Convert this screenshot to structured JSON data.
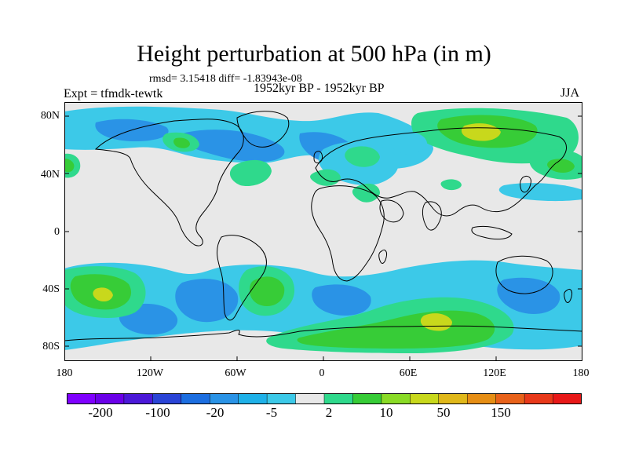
{
  "title": "Height perturbation at 500 hPa (in m)",
  "stats": "rmsd= 3.15418 diff= -1.83943e-08",
  "experiment": "Expt = tfmdk-tewtk",
  "period": "1952kyr BP - 1952kyr BP",
  "season": "JJA",
  "axes": {
    "lat_labels": [
      "80N",
      "40N",
      "0",
      "40S",
      "80S"
    ],
    "lon_labels": [
      "180",
      "120W",
      "60W",
      "0",
      "60E",
      "120E",
      "180"
    ]
  },
  "colorbar": {
    "labels": [
      "-200",
      "-100",
      "-20",
      "-5",
      "2",
      "10",
      "50",
      "150"
    ],
    "colors": [
      "#7f00ff",
      "#6a00e8",
      "#4b18d8",
      "#2a44d6",
      "#1c6ee0",
      "#2a93e6",
      "#1fb1e8",
      "#3cc9e8",
      "#e8e8e8",
      "#2fd98c",
      "#37cc37",
      "#8adb26",
      "#c8d81c",
      "#e0b81a",
      "#e68e14",
      "#e8621a",
      "#e8391a",
      "#e81818"
    ]
  },
  "colors": {
    "land_outline": "#000000",
    "neutral": "#e8e8e8",
    "cyan": "#3cc9e8",
    "lightblue": "#1fb1e8",
    "blue": "#2a93e6",
    "teal": "#2fd98c",
    "green": "#37cc37",
    "yellowgreen": "#c8d81c"
  }
}
